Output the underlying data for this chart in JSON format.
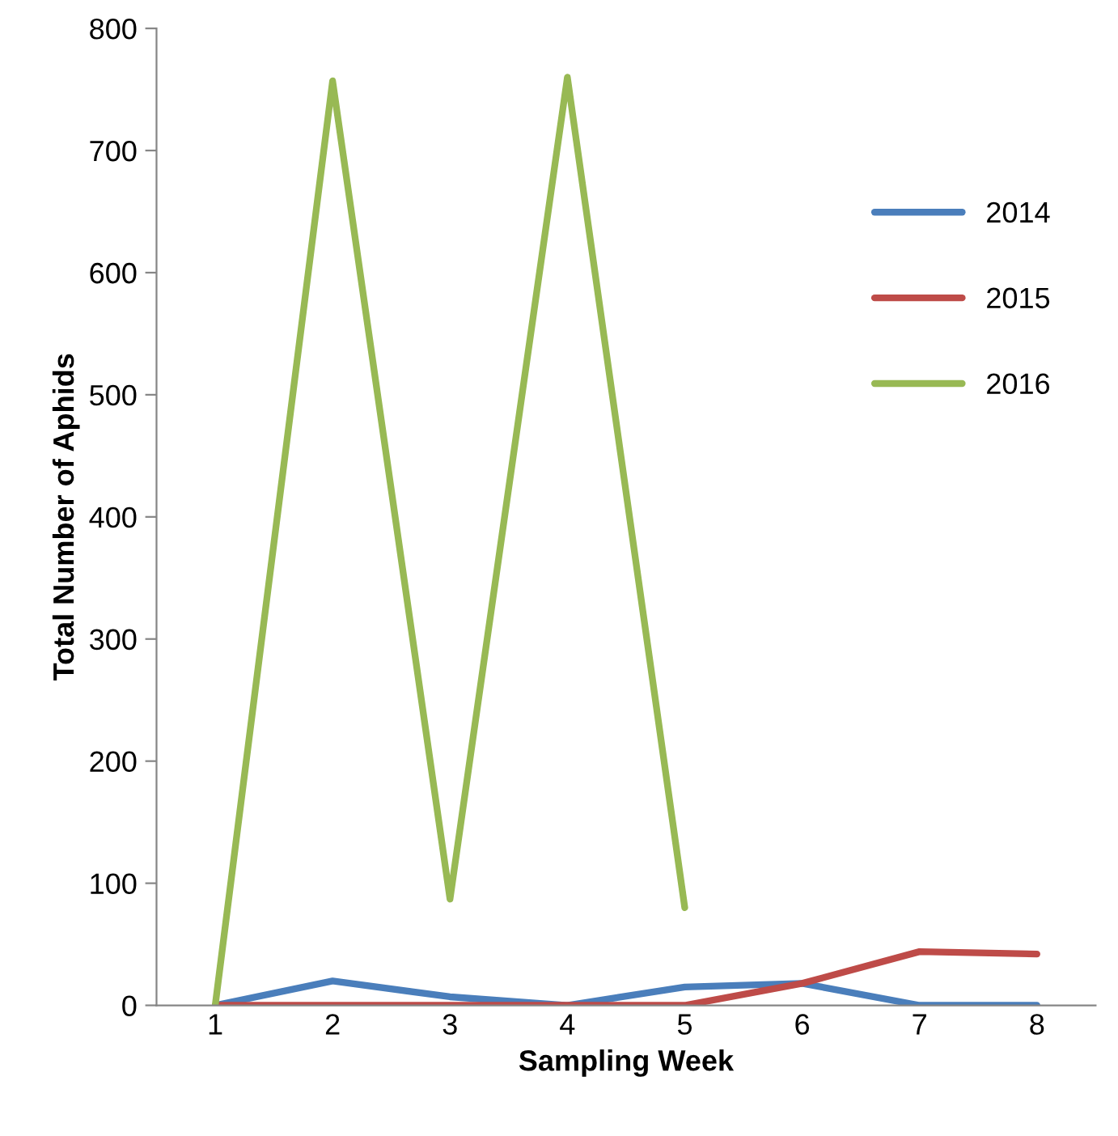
{
  "chart_data": {
    "type": "line",
    "xlabel": "Sampling Week",
    "ylabel": "Total Number of Aphids",
    "categories": [
      "1",
      "2",
      "3",
      "4",
      "5",
      "6",
      "7",
      "8"
    ],
    "series": [
      {
        "name": "2014",
        "color": "#4a7ebb",
        "values": [
          0,
          20,
          7,
          0,
          15,
          18,
          0,
          0
        ]
      },
      {
        "name": "2015",
        "color": "#be4b48",
        "values": [
          0,
          0,
          0,
          0,
          0,
          18,
          44,
          42
        ]
      },
      {
        "name": "2016",
        "color": "#98b954",
        "values": [
          0,
          757,
          87,
          760,
          80,
          null,
          null,
          null
        ]
      }
    ],
    "ylim": [
      0,
      800
    ],
    "yticks": [
      0,
      100,
      200,
      300,
      400,
      500,
      600,
      700,
      800
    ],
    "grid": false,
    "legend": "upper right",
    "marker": "none",
    "line_style": "solid"
  }
}
